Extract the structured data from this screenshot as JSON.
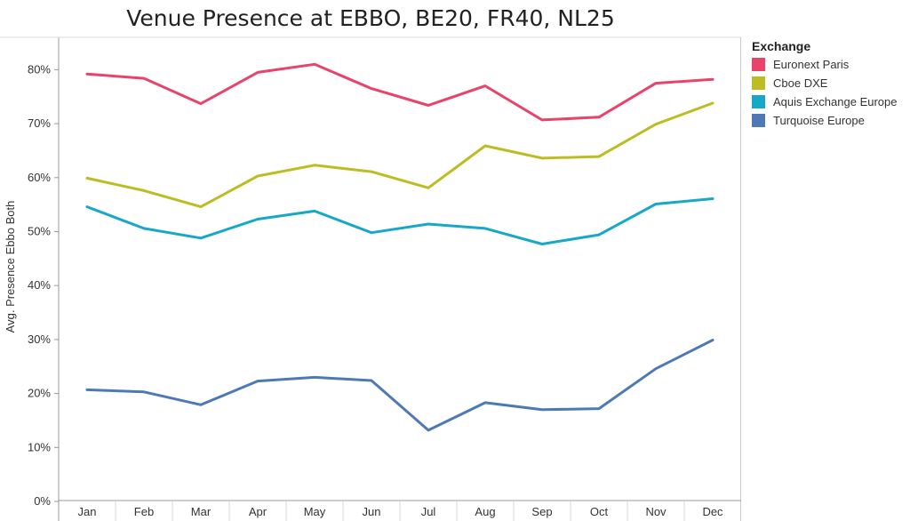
{
  "chart_data": {
    "type": "line",
    "title": "Venue Presence at EBBO, BE20, FR40, NL25",
    "xlabel": "",
    "ylabel": "Avg. Presence Ebbo Both",
    "categories": [
      "Jan",
      "Feb",
      "Mar",
      "Apr",
      "May",
      "Jun",
      "Jul",
      "Aug",
      "Sep",
      "Oct",
      "Nov",
      "Dec"
    ],
    "ylim": [
      0,
      0.84
    ],
    "yticks": [
      0,
      0.1,
      0.2,
      0.3,
      0.4,
      0.5,
      0.6,
      0.7,
      0.8
    ],
    "ytick_labels": [
      "0%",
      "10%",
      "20%",
      "30%",
      "40%",
      "50%",
      "60%",
      "70%",
      "80%"
    ],
    "grid": false,
    "legend": {
      "title": "Exchange",
      "placement": "right"
    },
    "series": [
      {
        "name": "Euronext Paris",
        "color": "#e8436a",
        "values": [
          0.792,
          0.784,
          0.737,
          0.795,
          0.81,
          0.765,
          0.734,
          0.77,
          0.707,
          0.712,
          0.775,
          0.782
        ]
      },
      {
        "name": "Cboe DXE",
        "color": "#bcbd22",
        "values": [
          0.599,
          0.576,
          0.546,
          0.603,
          0.623,
          0.611,
          0.581,
          0.659,
          0.636,
          0.639,
          0.699,
          0.738
        ]
      },
      {
        "name": "Aquis Exchange Europe",
        "color": "#17a8c7",
        "values": [
          0.546,
          0.506,
          0.488,
          0.523,
          0.538,
          0.498,
          0.514,
          0.506,
          0.477,
          0.494,
          0.551,
          0.561
        ]
      },
      {
        "name": "Turquoise Europe",
        "color": "#4e79b7",
        "values": [
          0.207,
          0.203,
          0.179,
          0.223,
          0.23,
          0.224,
          0.132,
          0.183,
          0.17,
          0.172,
          0.246,
          0.299
        ]
      }
    ]
  }
}
